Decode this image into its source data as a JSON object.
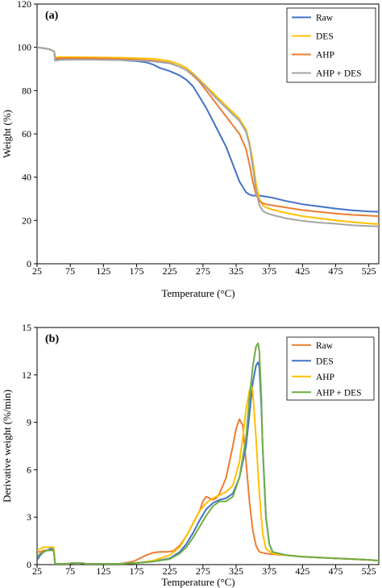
{
  "chart_data": [
    {
      "type": "line",
      "panel_label": "(a)",
      "xlabel": "Temperature (°C)",
      "ylabel": "Weight (%)",
      "xlim": [
        25,
        540
      ],
      "ylim": [
        0,
        120
      ],
      "xticks": [
        "25",
        "75",
        "125",
        "175",
        "225",
        "275",
        "325",
        "375",
        "425",
        "475",
        "525"
      ],
      "yticks": [
        "0",
        "20",
        "40",
        "60",
        "80",
        "100",
        "120"
      ],
      "legend_position": "top-right",
      "grid": false,
      "series": [
        {
          "name": "Raw",
          "color": "#4472C4",
          "x": [
            25,
            35,
            45,
            51,
            52,
            60,
            80,
            100,
            125,
            150,
            175,
            190,
            200,
            210,
            225,
            240,
            250,
            260,
            270,
            280,
            290,
            300,
            310,
            320,
            330,
            340,
            345,
            350,
            355,
            360,
            370,
            380,
            400,
            425,
            450,
            475,
            500,
            525,
            540
          ],
          "y": [
            100,
            99.6,
            99,
            98,
            94.5,
            94.6,
            94.5,
            94.4,
            94.3,
            94.1,
            93.6,
            93,
            92,
            90.5,
            89,
            87,
            85,
            82,
            77,
            72,
            66,
            60,
            54,
            46,
            38,
            33,
            32,
            31.5,
            31.5,
            31.5,
            31,
            30.5,
            29,
            27.5,
            26.5,
            25.5,
            24.7,
            24.2,
            24
          ]
        },
        {
          "name": "DES",
          "color": "#FFC000",
          "x": [
            25,
            35,
            45,
            51,
            52,
            60,
            80,
            100,
            125,
            150,
            175,
            200,
            225,
            240,
            250,
            260,
            270,
            280,
            290,
            300,
            310,
            320,
            330,
            340,
            345,
            350,
            355,
            360,
            365,
            370,
            380,
            400,
            425,
            450,
            475,
            500,
            525,
            540
          ],
          "y": [
            100,
            99.6,
            99,
            98,
            95.3,
            95.5,
            95.5,
            95.4,
            95.3,
            95.2,
            95,
            94.7,
            93.6,
            92,
            90.5,
            88,
            85,
            82,
            79,
            76,
            73,
            70,
            67,
            62,
            56,
            48,
            37,
            30,
            27,
            26,
            25,
            23.5,
            22,
            21,
            20,
            19.3,
            18.6,
            18.3
          ]
        },
        {
          "name": "AHP",
          "color": "#ED7D31",
          "x": [
            25,
            35,
            45,
            51,
            52,
            60,
            80,
            100,
            125,
            150,
            175,
            200,
            225,
            240,
            250,
            260,
            270,
            280,
            290,
            300,
            310,
            320,
            330,
            340,
            345,
            350,
            355,
            360,
            365,
            370,
            380,
            400,
            425,
            450,
            475,
            500,
            525,
            540
          ],
          "y": [
            100,
            99.6,
            99,
            98,
            94.8,
            95,
            95,
            94.9,
            94.8,
            94.6,
            94.3,
            93.8,
            92.8,
            91,
            89.5,
            87,
            84,
            80,
            76,
            72,
            68,
            64,
            60,
            53,
            46,
            38,
            32,
            29,
            28,
            27.5,
            27,
            26,
            24.8,
            24,
            23.2,
            22.6,
            22.2,
            22
          ]
        },
        {
          "name": "AHP + DES",
          "color": "#A5A5A5",
          "x": [
            25,
            35,
            45,
            51,
            52,
            60,
            80,
            100,
            125,
            150,
            175,
            200,
            225,
            240,
            250,
            260,
            270,
            280,
            290,
            300,
            310,
            320,
            330,
            340,
            345,
            350,
            355,
            360,
            365,
            370,
            380,
            400,
            425,
            450,
            475,
            500,
            525,
            540
          ],
          "y": [
            100,
            99.6,
            99,
            98,
            93.8,
            94.2,
            94.3,
            94.3,
            94.2,
            94.1,
            93.9,
            93.5,
            92.6,
            91,
            89.5,
            87.5,
            84.5,
            81.5,
            78,
            75,
            72,
            69,
            66,
            61,
            55,
            45,
            34,
            27,
            24.5,
            23.5,
            22.5,
            21,
            19.8,
            19,
            18.5,
            17.8,
            17.4,
            17.2
          ]
        }
      ]
    },
    {
      "type": "line",
      "panel_label": "(b)",
      "xlabel": "Temperature (°C)",
      "ylabel": "Derivative weight (%/min)",
      "xlim": [
        25,
        540
      ],
      "ylim": [
        0,
        15
      ],
      "xticks": [
        "25",
        "75",
        "125",
        "175",
        "225",
        "275",
        "325",
        "375",
        "425",
        "475",
        "525"
      ],
      "yticks": [
        "0",
        "3",
        "6",
        "9",
        "12",
        "15"
      ],
      "legend_position": "top-right",
      "grid": false,
      "series": [
        {
          "name": "Raw",
          "color": "#ED7D31",
          "x": [
            25,
            30,
            35,
            40,
            45,
            50,
            52,
            53,
            60,
            70,
            80,
            90,
            100,
            125,
            150,
            170,
            180,
            190,
            200,
            210,
            220,
            230,
            240,
            250,
            260,
            270,
            275,
            280,
            285,
            290,
            295,
            300,
            310,
            320,
            325,
            330,
            335,
            340,
            345,
            350,
            355,
            360,
            370,
            380,
            400,
            425,
            450,
            475,
            500,
            525,
            540
          ],
          "y": [
            0.8,
            0.8,
            0.9,
            0.9,
            1,
            1,
            0.1,
            0.05,
            0.05,
            0.05,
            0.1,
            0.1,
            0.05,
            0.05,
            0.05,
            0.2,
            0.4,
            0.6,
            0.75,
            0.8,
            0.8,
            0.85,
            1.2,
            1.8,
            2.6,
            3.4,
            4,
            4.3,
            4.2,
            4.1,
            4.2,
            4.5,
            5.5,
            7.5,
            8.6,
            9.2,
            8.8,
            6.5,
            4,
            2.2,
            1.2,
            0.8,
            0.7,
            0.65,
            0.6,
            0.5,
            0.45,
            0.4,
            0.35,
            0.3,
            0.25
          ]
        },
        {
          "name": "DES",
          "color": "#4472C4",
          "x": [
            25,
            30,
            35,
            40,
            45,
            50,
            52,
            53,
            60,
            70,
            80,
            90,
            100,
            125,
            150,
            175,
            200,
            225,
            240,
            250,
            260,
            270,
            280,
            290,
            300,
            310,
            320,
            330,
            340,
            345,
            350,
            355,
            358,
            360,
            363,
            365,
            370,
            375,
            380,
            400,
            425,
            450,
            475,
            500,
            525,
            540
          ],
          "y": [
            0.3,
            0.6,
            0.8,
            0.9,
            1,
            1,
            0.1,
            0.05,
            0.05,
            0.05,
            0.1,
            0.1,
            0.05,
            0.05,
            0.05,
            0.1,
            0.2,
            0.4,
            0.8,
            1.3,
            2,
            2.8,
            3.5,
            3.9,
            4.1,
            4.2,
            4.5,
            5.5,
            7.5,
            9.5,
            11.5,
            12.6,
            12.8,
            12.5,
            10,
            7.5,
            3,
            1.3,
            0.8,
            0.6,
            0.5,
            0.45,
            0.4,
            0.35,
            0.3,
            0.25
          ]
        },
        {
          "name": "AHP",
          "color": "#FFC000",
          "x": [
            25,
            30,
            35,
            40,
            45,
            50,
            52,
            53,
            60,
            70,
            80,
            90,
            100,
            125,
            150,
            175,
            200,
            225,
            240,
            250,
            260,
            270,
            280,
            290,
            300,
            310,
            320,
            330,
            335,
            340,
            345,
            348,
            350,
            355,
            360,
            365,
            370,
            380,
            400,
            425,
            450,
            475,
            500,
            525,
            540
          ],
          "y": [
            0.9,
            1,
            1.1,
            1.1,
            1.1,
            1.1,
            0.1,
            0.05,
            0.05,
            0.05,
            0.1,
            0.1,
            0.05,
            0.05,
            0.05,
            0.1,
            0.25,
            0.6,
            1.1,
            1.8,
            2.6,
            3.4,
            3.9,
            4.2,
            4.4,
            4.6,
            5,
            6.5,
            8,
            9.8,
            11,
            11.3,
            11,
            8,
            4.5,
            2,
            1,
            0.7,
            0.6,
            0.5,
            0.45,
            0.4,
            0.35,
            0.3,
            0.25
          ]
        },
        {
          "name": "AHP + DES",
          "color": "#70AD47",
          "x": [
            25,
            30,
            35,
            40,
            45,
            50,
            52,
            53,
            60,
            70,
            80,
            90,
            100,
            125,
            150,
            175,
            200,
            225,
            240,
            250,
            260,
            270,
            280,
            290,
            300,
            310,
            320,
            330,
            340,
            345,
            350,
            355,
            358,
            360,
            363,
            365,
            370,
            375,
            380,
            400,
            425,
            450,
            475,
            500,
            525,
            540
          ],
          "y": [
            0.5,
            0.7,
            0.8,
            0.9,
            0.9,
            0.9,
            0.1,
            0.05,
            0.05,
            0.05,
            0.1,
            0.1,
            0.05,
            0.05,
            0.05,
            0.1,
            0.2,
            0.35,
            0.7,
            1.1,
            1.7,
            2.4,
            3.1,
            3.7,
            4,
            4,
            4.3,
            5.5,
            8,
            10.5,
            12.5,
            13.8,
            14,
            13.5,
            10.5,
            7.5,
            3,
            1.3,
            0.8,
            0.6,
            0.5,
            0.45,
            0.4,
            0.35,
            0.3,
            0.25
          ]
        }
      ]
    }
  ]
}
